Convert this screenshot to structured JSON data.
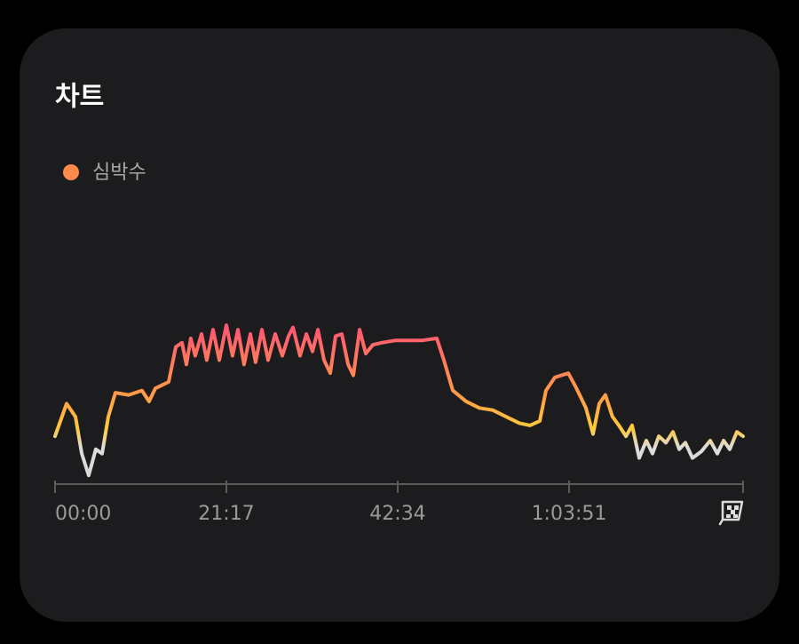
{
  "chart_data": {
    "type": "line",
    "title": "차트",
    "x": [
      0,
      86,
      152,
      199,
      251,
      304,
      351,
      397,
      450,
      549,
      648,
      701,
      748,
      847,
      900,
      946,
      979,
      1012,
      1045,
      1092,
      1131,
      1178,
      1224,
      1277,
      1323,
      1363,
      1409,
      1456,
      1495,
      1542,
      1588,
      1641,
      1694,
      1740,
      1773,
      1826,
      1873,
      1919,
      1959,
      2005,
      2051,
      2091,
      2137,
      2184,
      2223,
      2270,
      2316,
      2369,
      2435,
      2534,
      2634,
      2733,
      2845,
      2898,
      2964,
      3064,
      3163,
      3262,
      3361,
      3461,
      3540,
      3613,
      3659,
      3725,
      3825,
      3878,
      3957,
      4010,
      4056,
      4102,
      4155,
      4202,
      4255,
      4301,
      4354,
      4407,
      4453,
      4500,
      4553,
      4605,
      4652,
      4698,
      4751,
      4817,
      4883,
      4936,
      4983,
      5029,
      5082,
      5128
    ],
    "series": [
      {
        "name": "심박수",
        "color": "#ff8a4c",
        "values": [
          102,
          117,
          111,
          94,
          84,
          96,
          94,
          111,
          122,
          121,
          123,
          118,
          124,
          127,
          143,
          145,
          135,
          147,
          139,
          149,
          137,
          151,
          137,
          153,
          139,
          151,
          135,
          149,
          136,
          151,
          137,
          149,
          139,
          148,
          152,
          139,
          149,
          141,
          151,
          137,
          131,
          148,
          149,
          135,
          130,
          151,
          140,
          144,
          145,
          146,
          146,
          146,
          147,
          137,
          123,
          118,
          115,
          114,
          111,
          108,
          107,
          109,
          123,
          129,
          131,
          125,
          115,
          103,
          117,
          121,
          111,
          107,
          102,
          107,
          92,
          100,
          94,
          102,
          99,
          104,
          96,
          99,
          92,
          95,
          100,
          94,
          100,
          96,
          104,
          102
        ]
      }
    ],
    "xlim": [
      0,
      5128
    ],
    "xticks": [
      {
        "value": 0,
        "label": "00:00"
      },
      {
        "value": 1277,
        "label": "21:17"
      },
      {
        "value": 2554,
        "label": "42:34"
      },
      {
        "value": 3831,
        "label": "1:03:51"
      }
    ],
    "ylim": [
      80,
      180
    ]
  }
}
